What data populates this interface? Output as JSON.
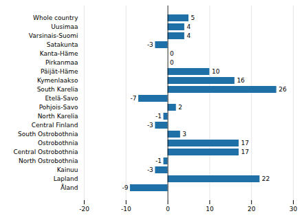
{
  "chart_data": {
    "type": "bar",
    "orientation": "horizontal",
    "categories": [
      "Whole country",
      "Uusimaa",
      "Varsinais-Suomi",
      "Satakunta",
      "Kanta-Häme",
      "Pirkanmaa",
      "Päijät-Häme",
      "Kymenlaakso",
      "South Karelia",
      "Etelä-Savo",
      "Pohjois-Savo",
      "North Karelia",
      "Central Finland",
      "South Ostrobothnia",
      "Ostrobothnia",
      "Central Ostrobothnia",
      "North Ostrobothnia",
      "Kainuu",
      "Lapland",
      "Åland"
    ],
    "values": [
      5,
      4,
      4,
      -3,
      0,
      0,
      10,
      16,
      26,
      -7,
      2,
      -1,
      -3,
      3,
      17,
      17,
      -1,
      -3,
      22,
      -9
    ],
    "color": "#2070A8",
    "xlim": [
      -20,
      30
    ],
    "xticks": [
      -20,
      -10,
      0,
      10,
      20,
      30
    ],
    "grid": true,
    "data_labels": true
  }
}
